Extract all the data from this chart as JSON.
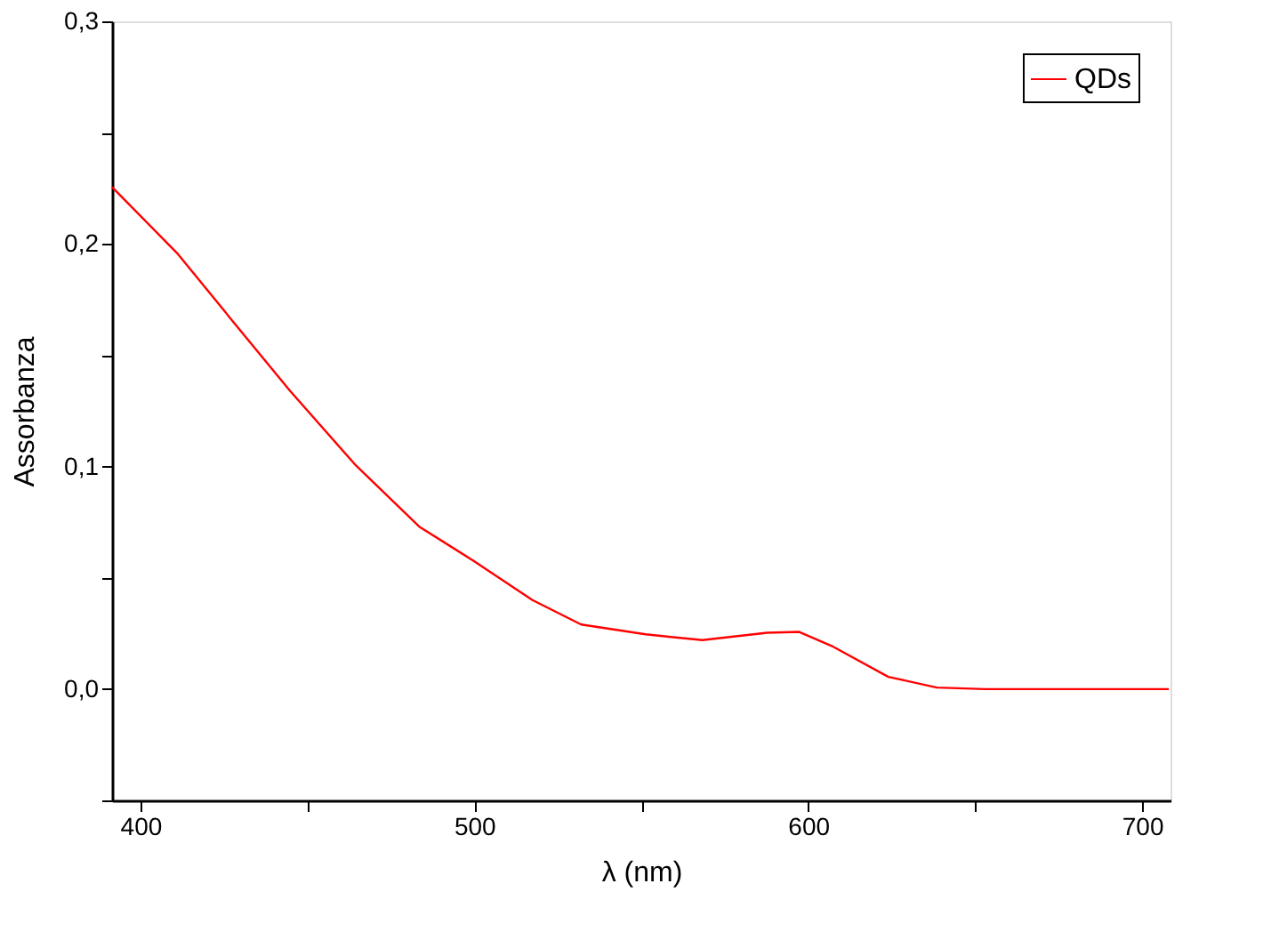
{
  "chart_data": {
    "type": "line",
    "xlabel": "λ (nm)",
    "ylabel": "Assorbanza",
    "x": [
      391.5,
      410.9,
      427.8,
      444.8,
      464.2,
      483.5,
      499.8,
      517.4,
      532,
      551.3,
      568.3,
      587.7,
      597.3,
      607,
      624,
      638.5,
      653,
      700,
      708
    ],
    "series": [
      {
        "name": "QDs",
        "color": "#ff0000",
        "values": [
          0.2255,
          0.196,
          0.165,
          0.134,
          0.101,
          0.073,
          0.0576,
          0.04,
          0.029,
          0.0246,
          0.022,
          0.0253,
          0.0257,
          0.0194,
          0.0055,
          0.0007,
          0.0,
          0.0,
          0.0
        ]
      }
    ],
    "xlim": [
      391.5,
      708.5
    ],
    "ylim": [
      -0.05,
      0.3
    ],
    "xticks": [
      400,
      {
        "value": 450,
        "label": null
      },
      500,
      {
        "value": 550,
        "label": null
      },
      600,
      {
        "value": 650,
        "label": null
      },
      700
    ],
    "yticks": [
      {
        "value": -0.05,
        "label": null
      },
      {
        "value": 0.0,
        "label": "0,0"
      },
      {
        "value": 0.05,
        "label": null
      },
      {
        "value": 0.1,
        "label": "0,1"
      },
      {
        "value": 0.15,
        "label": null
      },
      {
        "value": 0.2,
        "label": "0,2"
      },
      {
        "value": 0.25,
        "label": null
      },
      {
        "value": 0.3,
        "label": "0,3"
      }
    ],
    "grid": false,
    "legend": "top right",
    "marker": "none",
    "line_style": "solid"
  }
}
